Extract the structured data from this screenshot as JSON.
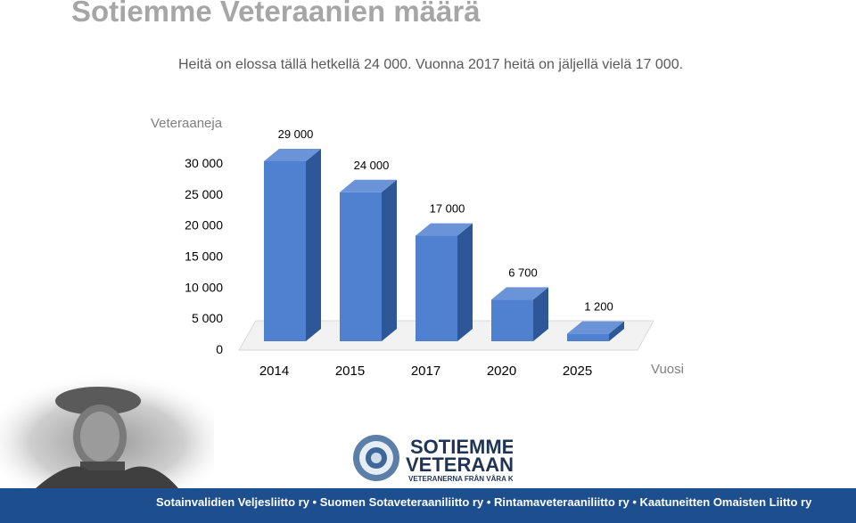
{
  "header": {
    "title": "Sotiemme Veteraanien määrä",
    "subtitle": "Heitä on elossa tällä hetkellä 24 000. Vuonna 2017 heitä on jäljellä vielä 17 000."
  },
  "chart_data": {
    "type": "bar",
    "categories": [
      "2014",
      "2015",
      "2017",
      "2020",
      "2025"
    ],
    "values": [
      29000,
      24000,
      17000,
      6700,
      1200
    ],
    "value_labels": [
      "29 000",
      "24 000",
      "17 000",
      "6 700",
      "1 200"
    ],
    "ylabel": "Veteraaneja",
    "xlabel": "Vuosi",
    "ylim": [
      0,
      30000
    ],
    "yticks": [
      0,
      5000,
      10000,
      15000,
      20000,
      25000,
      30000
    ],
    "ytick_labels": [
      "0",
      "5 000",
      "10 000",
      "15 000",
      "20 000",
      "25 000",
      "30 000"
    ],
    "bar_color": "#4f81d0",
    "grid": false,
    "legend": "none",
    "style": "3d-columns"
  },
  "logo": {
    "line1": "SOTIEMME",
    "line2": "VETERAANIT",
    "line3": "VETERANERNA FRÅN VÅRA KRIG"
  },
  "footer": {
    "text": "Sotainvalidien Veljesliitto ry • Suomen Sotaveteraaniliitto ry • Rintamaveteraaniliitto ry • Kaatuneitten Omaisten Liitto ry",
    "color": "#1d4f8f"
  }
}
